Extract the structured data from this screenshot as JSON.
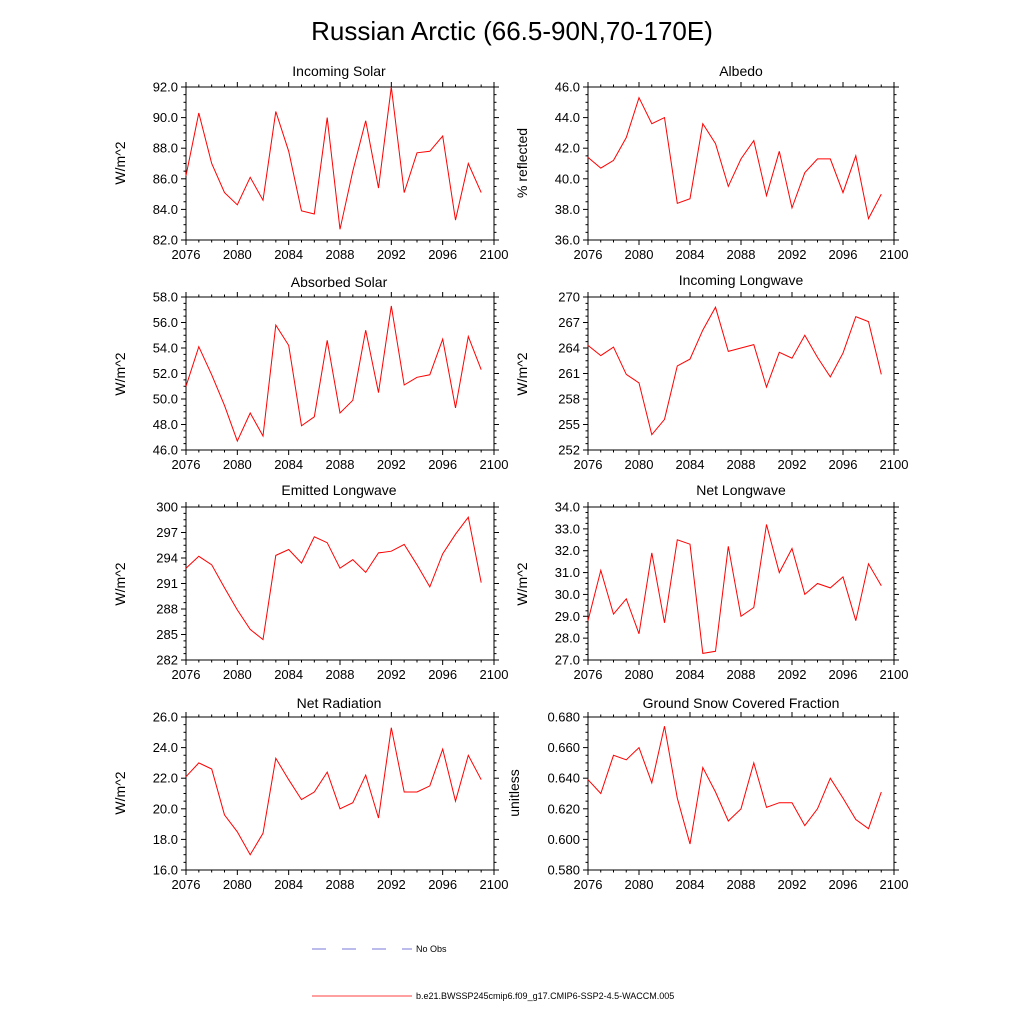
{
  "title": "Russian Arctic (66.5-90N,70-170E)",
  "legend": [
    {
      "label": "No Obs",
      "color": "#4b4bcc",
      "dash": true
    },
    {
      "label": "b.e21.BWSSP245cmip6.f09_g17.CMIP6-SSP2-4.5-WACCM.005",
      "color": "#ff0000",
      "dash": false
    }
  ],
  "chart_data": [
    {
      "type": "line",
      "title": "Incoming Solar",
      "ylabel": "W/m^2",
      "xlim": [
        2076,
        2100
      ],
      "xticks": [
        2076,
        2080,
        2084,
        2088,
        2092,
        2096,
        2100
      ],
      "ylim": [
        82,
        92
      ],
      "yticks": [
        82,
        84,
        86,
        88,
        90,
        92
      ],
      "ytick_labels": [
        "82.0",
        "84.0",
        "86.0",
        "88.0",
        "90.0",
        "92.0"
      ],
      "series": [
        {
          "name": "b.e21.BWSSP245cmip6.f09_g17.CMIP6-SSP2-4.5-WACCM.005",
          "color": "#ff0000",
          "x": [
            2076,
            2077,
            2078,
            2079,
            2080,
            2081,
            2082,
            2083,
            2084,
            2085,
            2086,
            2087,
            2088,
            2089,
            2090,
            2091,
            2092,
            2093,
            2094,
            2095,
            2096,
            2097,
            2098,
            2099
          ],
          "y": [
            86.2,
            90.3,
            87.0,
            85.1,
            84.3,
            86.1,
            84.6,
            90.4,
            87.8,
            83.9,
            83.7,
            90.0,
            82.7,
            86.5,
            89.8,
            85.4,
            92.0,
            85.1,
            87.7,
            87.8,
            88.8,
            83.3,
            87.0,
            85.1
          ]
        }
      ]
    },
    {
      "type": "line",
      "title": "Albedo",
      "ylabel": "% reflected",
      "xlim": [
        2076,
        2100
      ],
      "xticks": [
        2076,
        2080,
        2084,
        2088,
        2092,
        2096,
        2100
      ],
      "ylim": [
        36,
        46
      ],
      "yticks": [
        36,
        38,
        40,
        42,
        44,
        46
      ],
      "ytick_labels": [
        "36.0",
        "38.0",
        "40.0",
        "42.0",
        "44.0",
        "46.0"
      ],
      "series": [
        {
          "name": "b.e21.BWSSP245cmip6.f09_g17.CMIP6-SSP2-4.5-WACCM.005",
          "color": "#ff0000",
          "x": [
            2076,
            2077,
            2078,
            2079,
            2080,
            2081,
            2082,
            2083,
            2084,
            2085,
            2086,
            2087,
            2088,
            2089,
            2090,
            2091,
            2092,
            2093,
            2094,
            2095,
            2096,
            2097,
            2098,
            2099
          ],
          "y": [
            41.4,
            40.7,
            41.2,
            42.7,
            45.3,
            43.6,
            44.0,
            38.4,
            38.7,
            43.6,
            42.3,
            39.5,
            41.3,
            42.5,
            38.9,
            41.8,
            38.1,
            40.4,
            41.3,
            41.3,
            39.1,
            41.5,
            37.4,
            39.0
          ]
        }
      ]
    },
    {
      "type": "line",
      "title": "Absorbed Solar",
      "ylabel": "W/m^2",
      "xlim": [
        2076,
        2100
      ],
      "xticks": [
        2076,
        2080,
        2084,
        2088,
        2092,
        2096,
        2100
      ],
      "ylim": [
        46,
        58
      ],
      "yticks": [
        46,
        48,
        50,
        52,
        54,
        56,
        58
      ],
      "ytick_labels": [
        "46.0",
        "48.0",
        "50.0",
        "52.0",
        "54.0",
        "56.0",
        "58.0"
      ],
      "series": [
        {
          "name": "b.e21.BWSSP245cmip6.f09_g17.CMIP6-SSP2-4.5-WACCM.005",
          "color": "#ff0000",
          "x": [
            2076,
            2077,
            2078,
            2079,
            2080,
            2081,
            2082,
            2083,
            2084,
            2085,
            2086,
            2087,
            2088,
            2089,
            2090,
            2091,
            2092,
            2093,
            2094,
            2095,
            2096,
            2097,
            2098,
            2099
          ],
          "y": [
            51.0,
            54.1,
            51.9,
            49.5,
            46.7,
            48.9,
            47.1,
            55.8,
            54.2,
            47.9,
            48.6,
            54.6,
            48.9,
            49.9,
            55.4,
            50.5,
            57.3,
            51.1,
            51.7,
            51.9,
            54.7,
            49.3,
            54.9,
            52.3
          ]
        }
      ]
    },
    {
      "type": "line",
      "title": "Incoming Longwave",
      "ylabel": "W/m^2",
      "xlim": [
        2076,
        2100
      ],
      "xticks": [
        2076,
        2080,
        2084,
        2088,
        2092,
        2096,
        2100
      ],
      "ylim": [
        252,
        270
      ],
      "yticks": [
        252,
        255,
        258,
        261,
        264,
        267,
        270
      ],
      "ytick_labels": [
        "252",
        "255",
        "258",
        "261",
        "264",
        "267",
        "270"
      ],
      "series": [
        {
          "name": "b.e21.BWSSP245cmip6.f09_g17.CMIP6-SSP2-4.5-WACCM.005",
          "color": "#ff0000",
          "x": [
            2076,
            2077,
            2078,
            2079,
            2080,
            2081,
            2082,
            2083,
            2084,
            2085,
            2086,
            2087,
            2088,
            2089,
            2090,
            2091,
            2092,
            2093,
            2094,
            2095,
            2096,
            2097,
            2098,
            2099
          ],
          "y": [
            264.3,
            263.1,
            264.1,
            260.9,
            259.9,
            253.8,
            255.6,
            261.9,
            262.7,
            266.1,
            268.8,
            263.6,
            264.0,
            264.4,
            259.4,
            263.5,
            262.8,
            265.5,
            262.9,
            260.6,
            263.4,
            267.7,
            267.1,
            260.9
          ]
        }
      ]
    },
    {
      "type": "line",
      "title": "Emitted Longwave",
      "ylabel": "W/m^2",
      "xlim": [
        2076,
        2100
      ],
      "xticks": [
        2076,
        2080,
        2084,
        2088,
        2092,
        2096,
        2100
      ],
      "ylim": [
        282,
        300
      ],
      "yticks": [
        282,
        285,
        288,
        291,
        294,
        297,
        300
      ],
      "ytick_labels": [
        "282",
        "285",
        "288",
        "291",
        "294",
        "297",
        "300"
      ],
      "series": [
        {
          "name": "b.e21.BWSSP245cmip6.f09_g17.CMIP6-SSP2-4.5-WACCM.005",
          "color": "#ff0000",
          "x": [
            2076,
            2077,
            2078,
            2079,
            2080,
            2081,
            2082,
            2083,
            2084,
            2085,
            2086,
            2087,
            2088,
            2089,
            2090,
            2091,
            2092,
            2093,
            2094,
            2095,
            2096,
            2097,
            2098,
            2099
          ],
          "y": [
            292.8,
            294.2,
            293.2,
            290.5,
            287.9,
            285.6,
            284.4,
            294.3,
            295.0,
            293.4,
            296.5,
            295.8,
            292.8,
            293.8,
            292.3,
            294.6,
            294.8,
            295.6,
            293.2,
            290.6,
            294.5,
            296.8,
            298.8,
            291.1
          ]
        }
      ]
    },
    {
      "type": "line",
      "title": "Net Longwave",
      "ylabel": "W/m^2",
      "xlim": [
        2076,
        2100
      ],
      "xticks": [
        2076,
        2080,
        2084,
        2088,
        2092,
        2096,
        2100
      ],
      "ylim": [
        27,
        34
      ],
      "yticks": [
        27,
        28,
        29,
        30,
        31,
        32,
        33,
        34
      ],
      "ytick_labels": [
        "27.0",
        "28.0",
        "29.0",
        "30.0",
        "31.0",
        "32.0",
        "33.0",
        "34.0"
      ],
      "series": [
        {
          "name": "b.e21.BWSSP245cmip6.f09_g17.CMIP6-SSP2-4.5-WACCM.005",
          "color": "#ff0000",
          "x": [
            2076,
            2077,
            2078,
            2079,
            2080,
            2081,
            2082,
            2083,
            2084,
            2085,
            2086,
            2087,
            2088,
            2089,
            2090,
            2091,
            2092,
            2093,
            2094,
            2095,
            2096,
            2097,
            2098,
            2099
          ],
          "y": [
            28.8,
            31.1,
            29.1,
            29.8,
            28.2,
            31.9,
            28.7,
            32.5,
            32.3,
            27.3,
            27.4,
            32.2,
            29.0,
            29.4,
            33.2,
            31.0,
            32.1,
            30.0,
            30.5,
            30.3,
            30.8,
            28.8,
            31.4,
            30.4
          ]
        }
      ]
    },
    {
      "type": "line",
      "title": "Net Radiation",
      "ylabel": "W/m^2",
      "xlim": [
        2076,
        2100
      ],
      "xticks": [
        2076,
        2080,
        2084,
        2088,
        2092,
        2096,
        2100
      ],
      "ylim": [
        16,
        26
      ],
      "yticks": [
        16,
        18,
        20,
        22,
        24,
        26
      ],
      "ytick_labels": [
        "16.0",
        "18.0",
        "20.0",
        "22.0",
        "24.0",
        "26.0"
      ],
      "series": [
        {
          "name": "b.e21.BWSSP245cmip6.f09_g17.CMIP6-SSP2-4.5-WACCM.005",
          "color": "#ff0000",
          "x": [
            2076,
            2077,
            2078,
            2079,
            2080,
            2081,
            2082,
            2083,
            2084,
            2085,
            2086,
            2087,
            2088,
            2089,
            2090,
            2091,
            2092,
            2093,
            2094,
            2095,
            2096,
            2097,
            2098,
            2099
          ],
          "y": [
            22.1,
            23.0,
            22.6,
            19.6,
            18.5,
            17.0,
            18.4,
            23.3,
            21.9,
            20.6,
            21.1,
            22.4,
            20.0,
            20.4,
            22.2,
            19.4,
            25.3,
            21.1,
            21.1,
            21.5,
            23.9,
            20.5,
            23.5,
            21.9
          ]
        }
      ]
    },
    {
      "type": "line",
      "title": "Ground Snow Covered Fraction",
      "ylabel": "unitless",
      "xlim": [
        2076,
        2100
      ],
      "xticks": [
        2076,
        2080,
        2084,
        2088,
        2092,
        2096,
        2100
      ],
      "ylim": [
        0.58,
        0.68
      ],
      "yticks": [
        0.58,
        0.6,
        0.62,
        0.64,
        0.66,
        0.68
      ],
      "ytick_labels": [
        "0.580",
        "0.600",
        "0.620",
        "0.640",
        "0.660",
        "0.680"
      ],
      "series": [
        {
          "name": "b.e21.BWSSP245cmip6.f09_g17.CMIP6-SSP2-4.5-WACCM.005",
          "color": "#ff0000",
          "x": [
            2076,
            2077,
            2078,
            2079,
            2080,
            2081,
            2082,
            2083,
            2084,
            2085,
            2086,
            2087,
            2088,
            2089,
            2090,
            2091,
            2092,
            2093,
            2094,
            2095,
            2096,
            2097,
            2098,
            2099
          ],
          "y": [
            0.639,
            0.63,
            0.655,
            0.652,
            0.66,
            0.637,
            0.674,
            0.627,
            0.597,
            0.647,
            0.631,
            0.612,
            0.62,
            0.65,
            0.621,
            0.624,
            0.624,
            0.609,
            0.62,
            0.64,
            0.627,
            0.613,
            0.607,
            0.631
          ]
        }
      ]
    }
  ]
}
